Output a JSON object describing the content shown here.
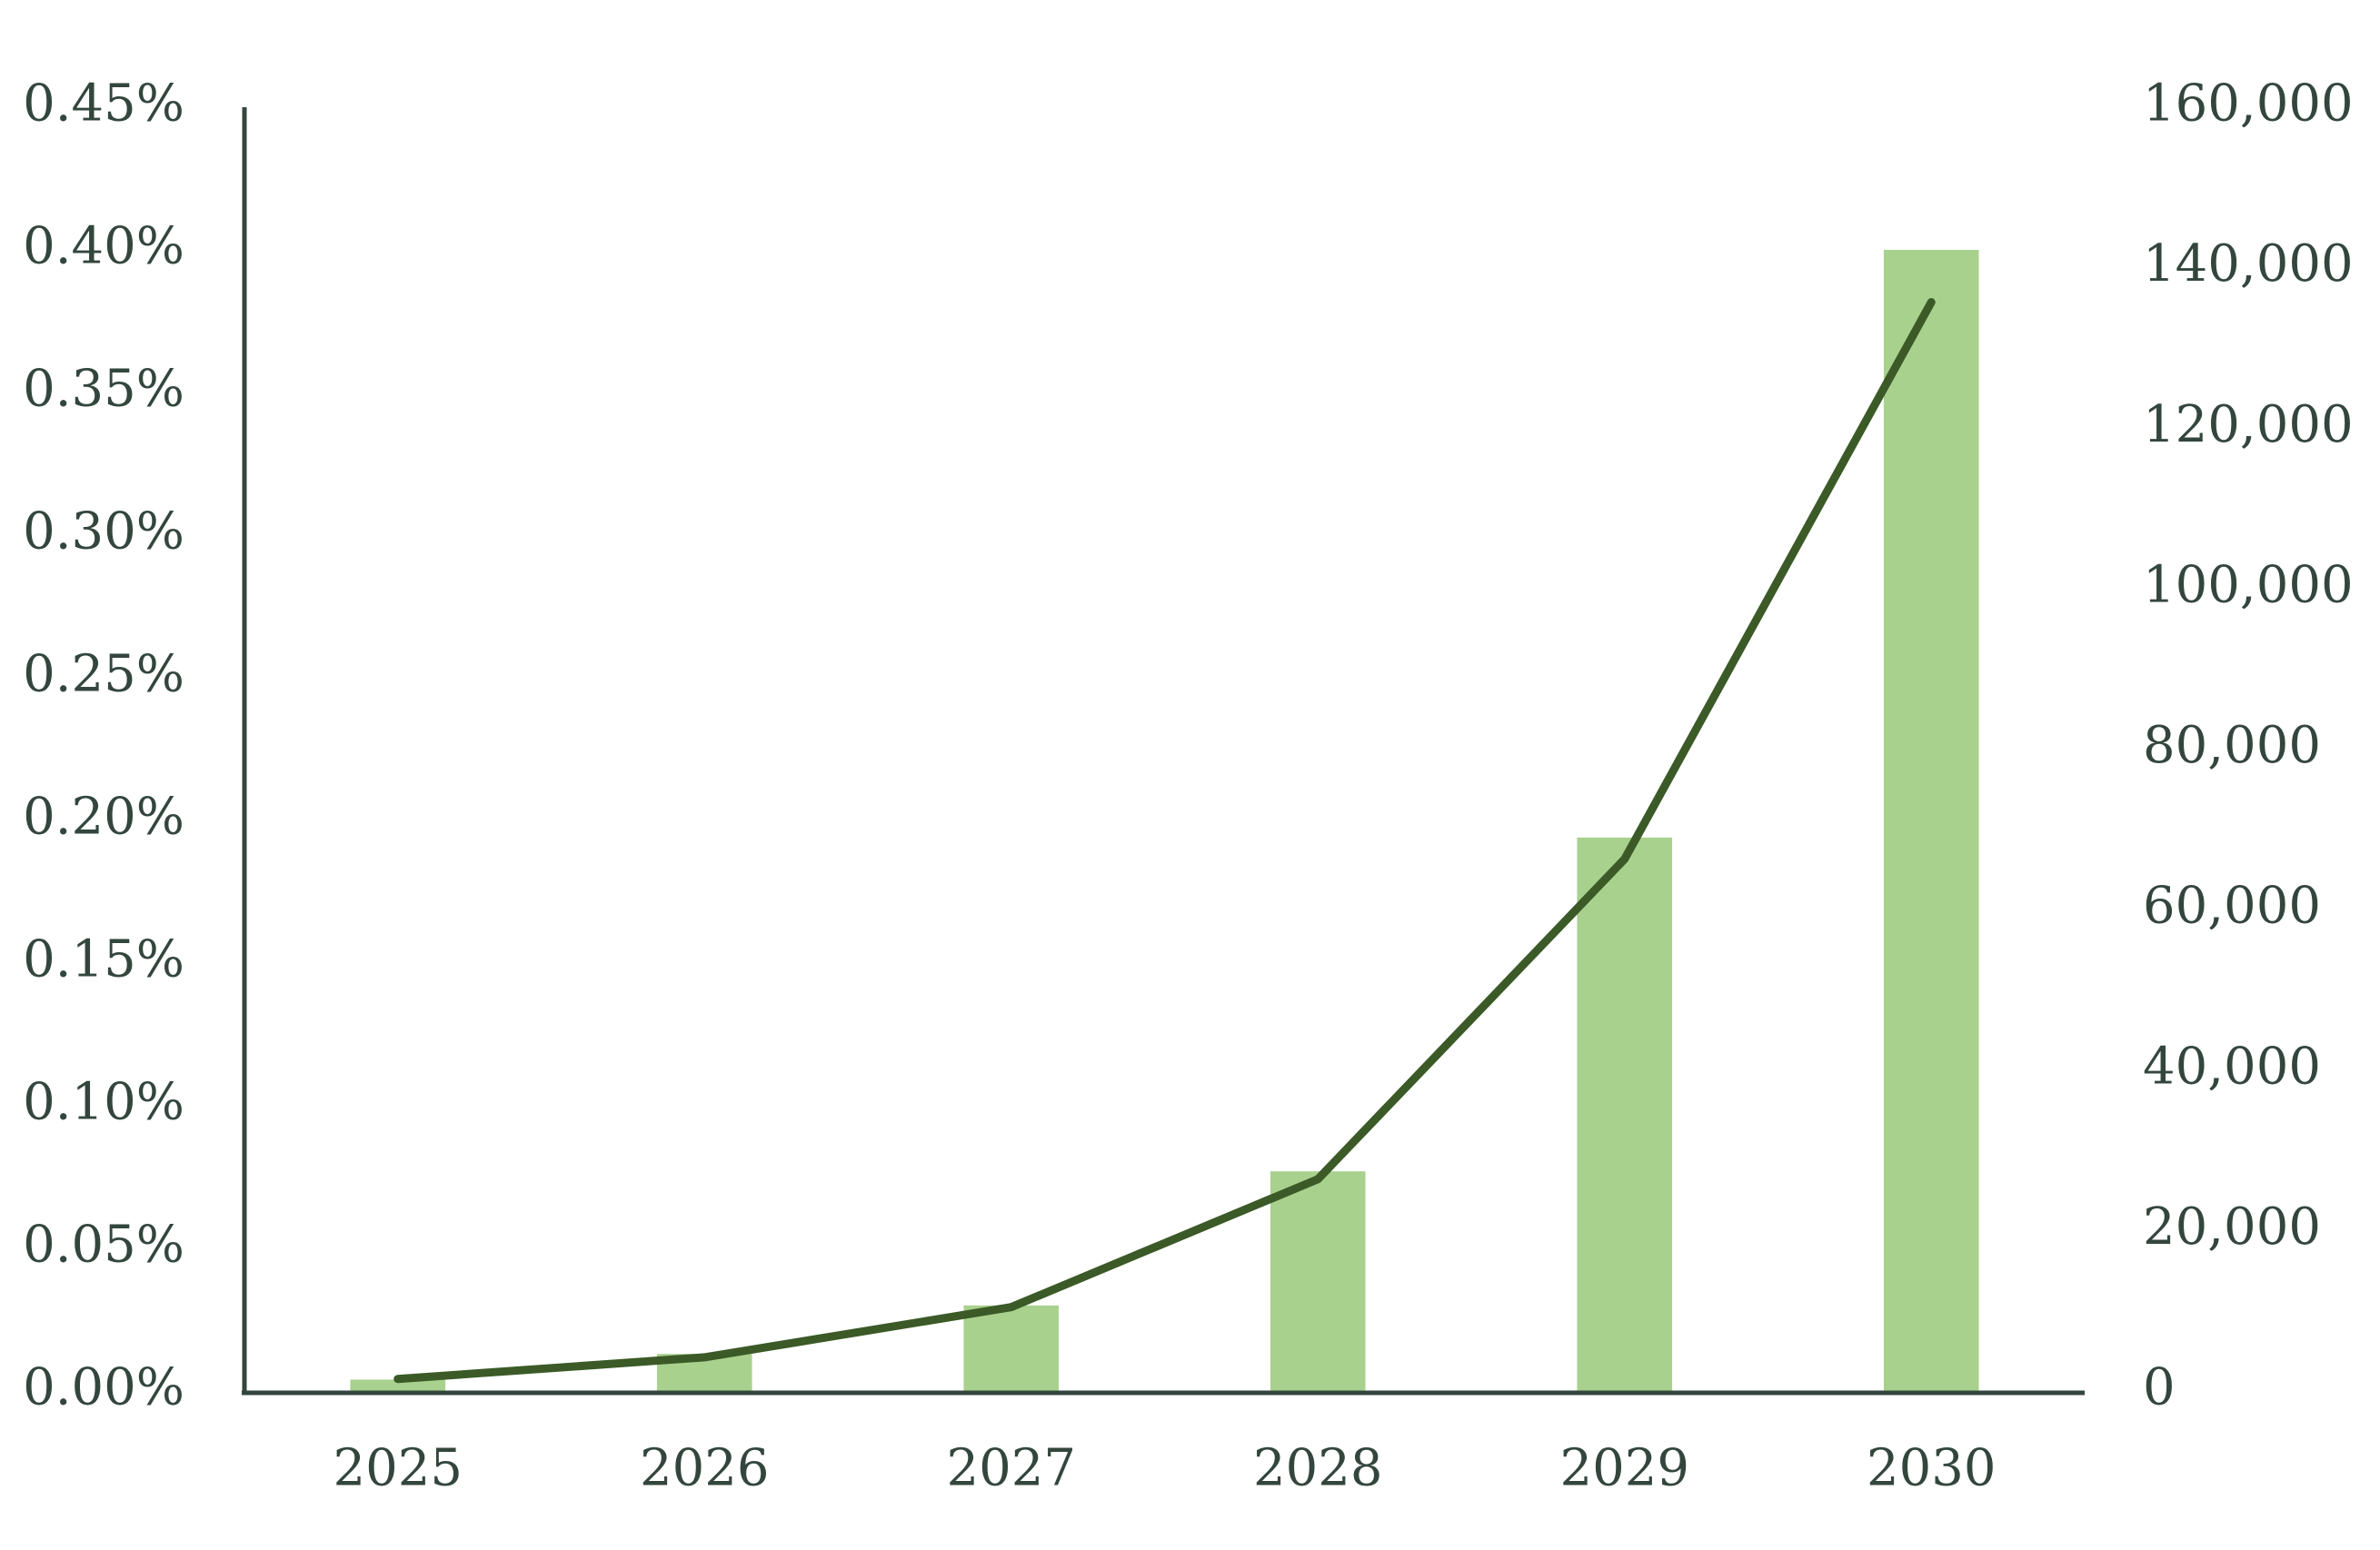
{
  "chart_data": {
    "type": "bar_line",
    "categories": [
      "2025",
      "2026",
      "2027",
      "2028",
      "2029",
      "2030"
    ],
    "series": [
      {
        "type": "bar",
        "color": "#a9d18e",
        "values": [
          0.004,
          0.013,
          0.03,
          0.077,
          0.194,
          0.4
        ]
      },
      {
        "type": "line",
        "axis": "y2",
        "color": "#3b5a27",
        "values": [
          1500,
          4200,
          10450,
          26400,
          66300,
          135700
        ]
      }
    ],
    "ylim": [
      0,
      0.45
    ],
    "yticks": [
      {
        "value": 0,
        "label": "0.00%"
      },
      {
        "value": 0.05,
        "label": "0.05%"
      },
      {
        "value": 0.1,
        "label": "0.10%"
      },
      {
        "value": 0.15,
        "label": "0.15%"
      },
      {
        "value": 0.2,
        "label": "0.20%"
      },
      {
        "value": 0.25,
        "label": "0.25%"
      },
      {
        "value": 0.3,
        "label": "0.30%"
      },
      {
        "value": 0.35,
        "label": "0.35%"
      },
      {
        "value": 0.4,
        "label": "0.40%"
      },
      {
        "value": 0.45,
        "label": "0.45%"
      }
    ],
    "y2lim": [
      0,
      160000
    ],
    "y2ticks": [
      0,
      {
        "value": 20000,
        "label": "20,000"
      },
      {
        "value": 40000,
        "label": "40,000"
      },
      {
        "value": 60000,
        "label": "60,000"
      },
      {
        "value": 80000,
        "label": "80,000"
      },
      {
        "value": 100000,
        "label": "100,000"
      },
      {
        "value": 120000,
        "label": "120,000"
      },
      {
        "value": 140000,
        "label": "140,000"
      },
      {
        "value": 160000,
        "label": "160,000"
      }
    ],
    "grid": false
  }
}
